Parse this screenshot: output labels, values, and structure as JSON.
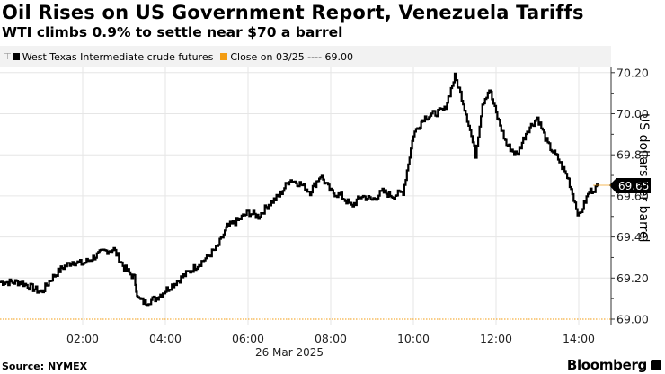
{
  "header": {
    "title": "Oil Rises on US Government Report, Venezuela Tariffs",
    "subtitle": "WTI climbs 0.9% to settle near $70 a barrel"
  },
  "legend": {
    "series_label": "West Texas Intermediate crude futures",
    "series_color": "#000000",
    "close_label": "Close on 03/25 ---- 69.00",
    "close_color": "#f39c12"
  },
  "footer": {
    "source": "Source: NYMEX",
    "brand": "Bloomberg"
  },
  "chart_data": {
    "type": "line",
    "title": "Oil Rises on US Government Report, Venezuela Tariffs",
    "subtitle": "WTI climbs 0.9% to settle near $70 a barrel",
    "xlabel": "26 Mar 2025",
    "ylabel": "US dollars per barrel",
    "ylim": [
      69.0,
      70.28
    ],
    "yticks": [
      69.0,
      69.2,
      69.4,
      69.6,
      69.8,
      70.0,
      70.2
    ],
    "ytick_labels": [
      "69.00",
      "69.20",
      "69.40",
      "69.60",
      "69.80",
      "70.00",
      "70.20"
    ],
    "xticks": [
      "02:00",
      "04:00",
      "06:00",
      "08:00",
      "10:00",
      "12:00",
      "14:00"
    ],
    "grid": true,
    "legend_position": "top",
    "last_value_label": "69.65",
    "reference_line": {
      "label": "Close on 03/25",
      "value": 69.0,
      "color": "#f39c12",
      "style": "dotted"
    },
    "series": [
      {
        "name": "West Texas Intermediate crude futures",
        "color": "#000000",
        "x": [
          "00:00",
          "00:30",
          "01:00",
          "01:15",
          "01:30",
          "01:45",
          "02:00",
          "02:15",
          "02:30",
          "02:45",
          "03:00",
          "03:15",
          "03:20",
          "03:30",
          "03:45",
          "04:00",
          "04:15",
          "04:30",
          "04:45",
          "05:00",
          "05:15",
          "05:30",
          "05:45",
          "06:00",
          "06:15",
          "06:30",
          "06:45",
          "07:00",
          "07:15",
          "07:30",
          "07:45",
          "08:00",
          "08:15",
          "08:30",
          "08:45",
          "09:00",
          "09:15",
          "09:30",
          "09:45",
          "10:00",
          "10:15",
          "10:30",
          "10:45",
          "11:00",
          "11:10",
          "11:20",
          "11:30",
          "11:40",
          "11:50",
          "12:00",
          "12:15",
          "12:30",
          "12:45",
          "13:00",
          "13:15",
          "13:30",
          "13:45",
          "14:00",
          "14:15",
          "14:30"
        ],
        "values": [
          69.18,
          69.18,
          69.13,
          69.2,
          69.25,
          69.28,
          69.27,
          69.3,
          69.33,
          69.34,
          69.25,
          69.2,
          69.1,
          69.08,
          69.1,
          69.14,
          69.18,
          69.22,
          69.26,
          69.3,
          69.35,
          69.45,
          69.48,
          69.52,
          69.5,
          69.56,
          69.6,
          69.68,
          69.66,
          69.62,
          69.7,
          69.62,
          69.6,
          69.55,
          69.6,
          69.58,
          69.62,
          69.6,
          69.62,
          69.9,
          69.98,
          70.0,
          70.02,
          70.18,
          70.08,
          69.95,
          69.8,
          70.05,
          70.12,
          70.0,
          69.85,
          69.8,
          69.92,
          69.98,
          69.85,
          69.78,
          69.68,
          69.5,
          69.62,
          69.65
        ]
      }
    ]
  }
}
